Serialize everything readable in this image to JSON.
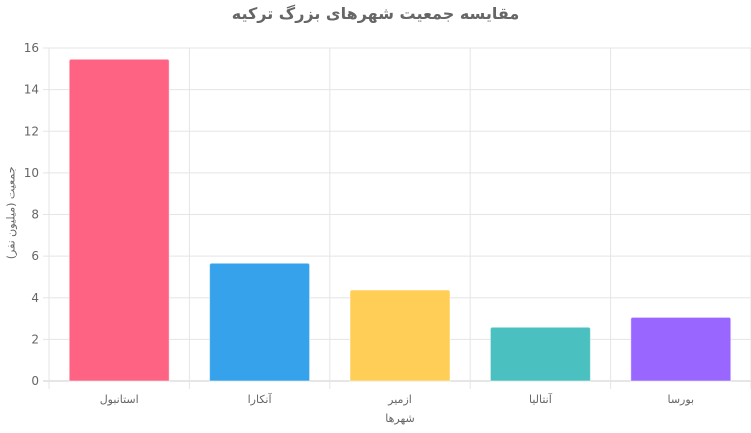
{
  "chart_data": {
    "type": "bar",
    "title": "مقایسه جمعیت شهرهای بزرگ ترکیه",
    "xlabel": "شهرها",
    "ylabel": "جمعیت (میلیون نفر)",
    "categories": [
      "استانبول",
      "آنکارا",
      "ازمیر",
      "آنتالیا",
      "بورسا"
    ],
    "values": [
      15.46,
      5.66,
      4.37,
      2.58,
      3.06
    ],
    "colors": [
      "#ff6384",
      "#36a2eb",
      "#ffce56",
      "#4bc0c0",
      "#9966ff"
    ],
    "ylim": [
      0,
      16
    ],
    "yticks": [
      "0",
      "2",
      "4",
      "6",
      "8",
      "10",
      "12",
      "14",
      "16"
    ],
    "grid": true,
    "legend": "none"
  }
}
